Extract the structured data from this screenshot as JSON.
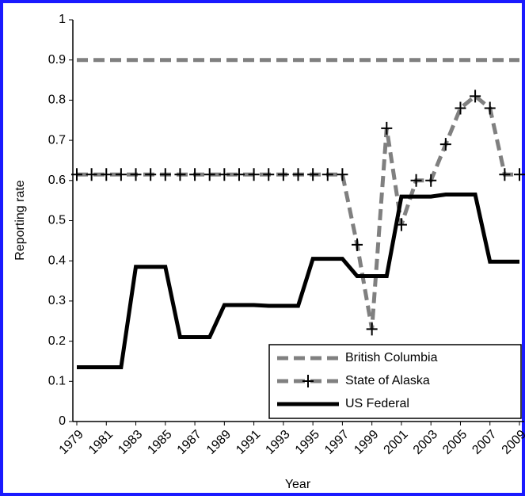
{
  "chart_data": {
    "type": "line",
    "x_label": "Year",
    "y_label": "Reporting rate",
    "x": [
      1979,
      1980,
      1981,
      1982,
      1983,
      1984,
      1985,
      1986,
      1987,
      1988,
      1989,
      1990,
      1991,
      1992,
      1993,
      1994,
      1995,
      1996,
      1997,
      1998,
      1999,
      2000,
      2001,
      2002,
      2003,
      2004,
      2005,
      2006,
      2007,
      2008,
      2009
    ],
    "xlim": [
      1979,
      2009
    ],
    "xticks": [
      1979,
      1981,
      1983,
      1985,
      1987,
      1989,
      1991,
      1993,
      1995,
      1997,
      1999,
      2001,
      2003,
      2005,
      2007,
      2009
    ],
    "ylim": [
      0,
      1
    ],
    "yticks": [
      0,
      0.1,
      0.2,
      0.3,
      0.4,
      0.5,
      0.6,
      0.7,
      0.8,
      0.9,
      1
    ],
    "legend": "lower right",
    "series": [
      {
        "name": "British Columbia",
        "color": "#808080",
        "style": "dashed",
        "values": [
          0.9,
          0.9,
          0.9,
          0.9,
          0.9,
          0.9,
          0.9,
          0.9,
          0.9,
          0.9,
          0.9,
          0.9,
          0.9,
          0.9,
          0.9,
          0.9,
          0.9,
          0.9,
          0.9,
          0.9,
          0.9,
          0.9,
          0.9,
          0.9,
          0.9,
          0.9,
          0.9,
          0.9,
          0.9,
          0.9,
          0.9
        ]
      },
      {
        "name": "State of Alaska",
        "color": "#808080",
        "style": "dashed",
        "marker": "plus",
        "values": [
          0.615,
          0.615,
          0.615,
          0.615,
          0.615,
          0.615,
          0.615,
          0.615,
          0.615,
          0.615,
          0.615,
          0.615,
          0.615,
          0.615,
          0.615,
          0.615,
          0.615,
          0.615,
          0.615,
          0.44,
          0.23,
          0.73,
          0.49,
          0.6,
          0.6,
          0.69,
          0.78,
          0.81,
          0.78,
          0.615,
          0.615
        ]
      },
      {
        "name": "US Federal",
        "color": "#000000",
        "style": "solid",
        "values": [
          0.135,
          0.135,
          0.135,
          0.135,
          0.385,
          0.385,
          0.385,
          0.21,
          0.21,
          0.21,
          0.29,
          0.29,
          0.29,
          0.288,
          0.288,
          0.288,
          0.405,
          0.405,
          0.405,
          0.362,
          0.362,
          0.362,
          0.56,
          0.56,
          0.56,
          0.565,
          0.565,
          0.565,
          0.398,
          0.398,
          0.398
        ]
      }
    ]
  }
}
